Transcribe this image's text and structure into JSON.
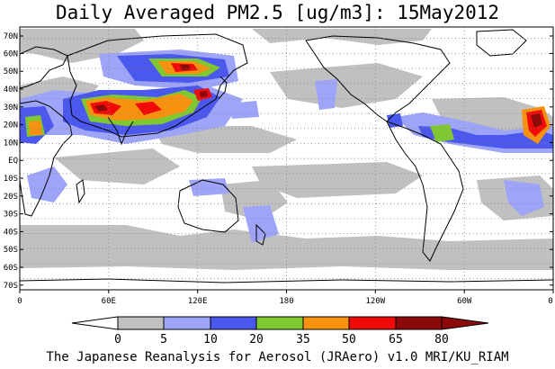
{
  "title": "Daily Averaged PM2.5 [ug/m3]: 15May2012",
  "footer": "The Japanese Reanalysis for Aerosol (JRAero) v1.0 MRI/KU_RIAM",
  "lat_labels": [
    "70N",
    "60N",
    "50N",
    "40N",
    "30N",
    "20N",
    "10N",
    "EQ",
    "10S",
    "20S",
    "30S",
    "40S",
    "50S",
    "60S",
    "70S"
  ],
  "lon_labels": [
    "0",
    "60E",
    "120E",
    "180",
    "120W",
    "60W",
    "0"
  ],
  "colorbar": {
    "labels": [
      "0",
      "5",
      "10",
      "20",
      "35",
      "50",
      "65",
      "80"
    ],
    "colors": [
      "#ffffff",
      "#c0c0c0",
      "#9ea4f7",
      "#4b58ee",
      "#7fc832",
      "#f6920f",
      "#f00a0a",
      "#8c0a0a"
    ]
  },
  "chart_data": {
    "type": "heatmap",
    "title": "Daily Averaged PM2.5 [ug/m3]: 15May2012",
    "xlabel": "",
    "ylabel": "",
    "x_range": [
      "0",
      "0"
    ],
    "y_range": [
      "70S",
      "70N"
    ],
    "levels": [
      0,
      5,
      10,
      20,
      35,
      50,
      65,
      80
    ],
    "grid": true
  }
}
